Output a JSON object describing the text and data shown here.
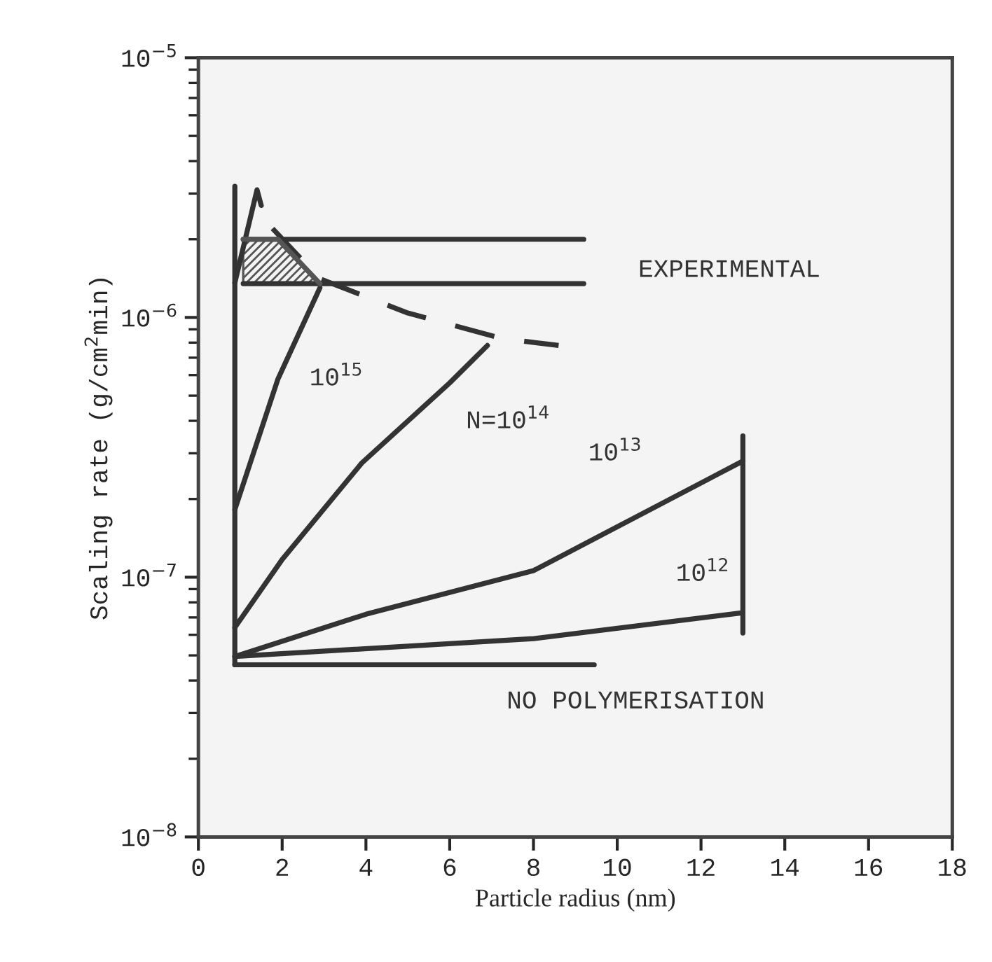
{
  "chart_data": {
    "type": "line",
    "xlabel": "Particle radius (nm)",
    "ylabel": "Scaling rate (g/cm$^{2}$min)",
    "log": "y",
    "xlim": [
      0,
      18
    ],
    "ylim": [
      1e-08,
      1e-05
    ],
    "xticks": [
      0,
      2,
      4,
      6,
      8,
      10,
      12,
      14,
      16,
      18
    ],
    "yticks": [
      {
        "value": 1e-08,
        "label": "10$^{−8}$"
      },
      {
        "value": 1e-07,
        "label": "10$^{−7}$"
      },
      {
        "value": 1e-06,
        "label": "10$^{−6}$"
      },
      {
        "value": 1e-05,
        "label": "10$^{−5}$"
      }
    ],
    "grid": false,
    "legend": false,
    "marker": "none",
    "series": [
      {
        "color": "#333333",
        "x": [
          0.87,
          0.87
        ],
        "values": [
          4.6e-08,
          3.2e-06
        ]
      },
      {
        "name": "NO POLYMERISATION",
        "color": "#333333",
        "x": [
          0.87,
          9.45
        ],
        "values": [
          4.6e-08,
          4.6e-08
        ]
      },
      {
        "name": "10$^{12}$",
        "color": "#333333",
        "x": [
          0.87,
          8,
          13
        ],
        "values": [
          4.95e-08,
          5.8e-08,
          7.3e-08
        ]
      },
      {
        "name": "10$^{13}$",
        "color": "#333333",
        "x": [
          0.87,
          4,
          8,
          13
        ],
        "values": [
          4.95e-08,
          7.2e-08,
          1.06e-07,
          2.8e-07
        ]
      },
      {
        "color": "#333333",
        "x": [
          13,
          13
        ],
        "values": [
          6.1e-08,
          3.5e-07
        ]
      },
      {
        "name": "N=10$^{14}$",
        "color": "#333333",
        "x": [
          0.87,
          2,
          3.9,
          6,
          6.9
        ],
        "values": [
          6.4e-08,
          1.17e-07,
          2.75e-07,
          5.6e-07,
          7.8e-07
        ]
      },
      {
        "name": "10$^{15}$",
        "color": "#333333",
        "x": [
          0.87,
          1.9,
          2.9
        ],
        "values": [
          1.82e-07,
          5.8e-07,
          1.3e-06
        ]
      },
      {
        "color": "#333333",
        "x": [
          0.87,
          1.4,
          1.5
        ],
        "values": [
          1.36e-06,
          3.1e-06,
          2.7e-06
        ]
      },
      {
        "color": "#333333",
        "line_style": "dashed",
        "x": [
          1.77,
          2.9,
          5.0,
          7.25,
          8.6
        ],
        "values": [
          2.2e-06,
          1.41e-06,
          1.04e-06,
          8.3e-07,
          7.8e-07
        ]
      },
      {
        "name": "EXPERIMENTAL",
        "color": "#333333",
        "x": [
          1.07,
          9.2
        ],
        "values": [
          2e-06,
          2e-06
        ]
      },
      {
        "color": "#333333",
        "x": [
          1.07,
          9.2
        ],
        "values": [
          1.35e-06,
          1.35e-06
        ]
      },
      {
        "color": "#555555",
        "x": [
          1.07,
          1.9,
          2.9
        ],
        "values": [
          2e-06,
          2e-06,
          1.35e-06
        ],
        "lower": [
          1.35e-06,
          1.35e-06,
          1.35e-06
        ],
        "upper": [
          2e-06,
          2e-06,
          1.35e-06
        ]
      }
    ]
  }
}
